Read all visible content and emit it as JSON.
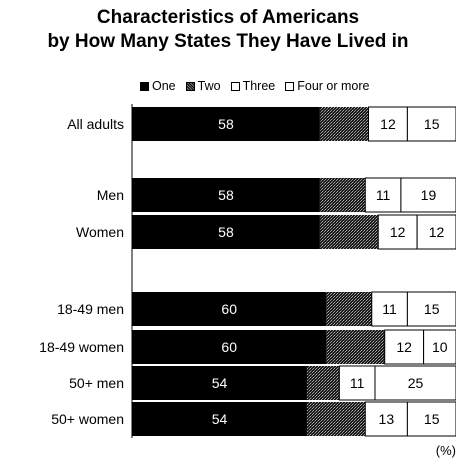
{
  "chart_data": {
    "type": "bar",
    "orientation": "horizontal",
    "stacked": true,
    "title": "Characteristics of Americans",
    "subtitle": "by How Many States They Have Lived in",
    "unit": "(%)",
    "categories": [
      "All adults",
      "Men",
      "Women",
      "18-49 men",
      "18-49 women",
      "50+ men",
      "50+ women"
    ],
    "series": [
      {
        "name": "One",
        "values": [
          58,
          58,
          58,
          60,
          60,
          54,
          54
        ],
        "color": "#000000"
      },
      {
        "name": "Two",
        "values": [
          null,
          null,
          null,
          null,
          null,
          null,
          null
        ],
        "color": "#555555"
      },
      {
        "name": "Three",
        "values": [
          12,
          11,
          12,
          11,
          12,
          11,
          13
        ],
        "color": "#ffffff"
      },
      {
        "name": "Four or more",
        "values": [
          15,
          19,
          12,
          15,
          10,
          25,
          15
        ],
        "color": "#ffffff"
      }
    ],
    "series_visible_widths": [
      [
        58,
        15,
        12,
        15
      ],
      [
        58,
        14,
        11,
        19
      ],
      [
        58,
        18,
        12,
        12
      ],
      [
        60,
        14,
        11,
        15
      ],
      [
        60,
        18,
        12,
        10
      ],
      [
        54,
        10,
        11,
        25
      ],
      [
        54,
        18,
        13,
        15
      ]
    ],
    "xlim": [
      0,
      100
    ],
    "legend_position": "top"
  }
}
